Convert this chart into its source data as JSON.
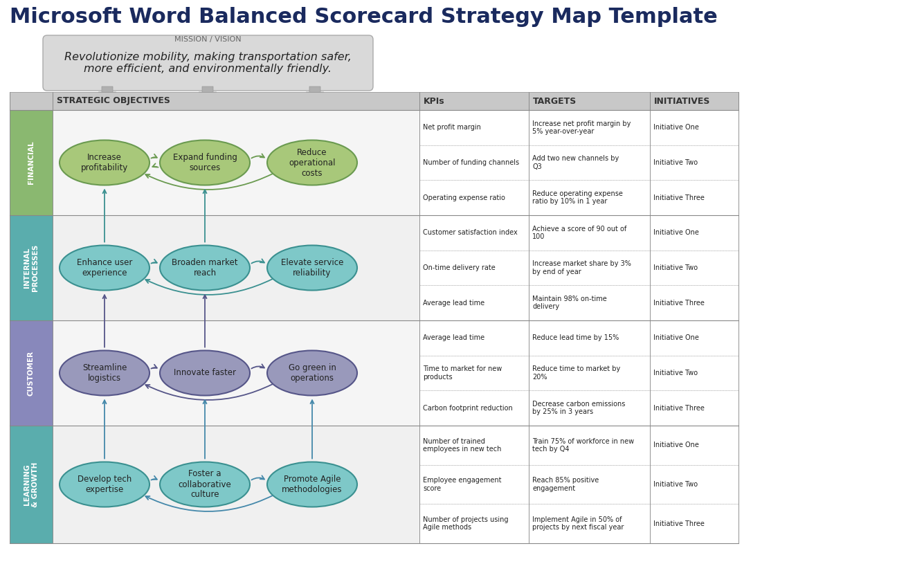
{
  "title": "Microsoft Word Balanced Scorecard Strategy Map Template",
  "mission_label": "MISSION / VISION",
  "mission_text": "Revolutionize mobility, making transportation safer,\nmore efficient, and environmentally friendly.",
  "title_color": "#1a2a5e",
  "bg_color": "#ffffff",
  "mission_box_bg": "#d9d9d9",
  "perspectives": [
    {
      "name": "FINANCIAL",
      "bg": "#8ab870"
    },
    {
      "name": "INTERNAL\nPROCESSES",
      "bg": "#5aadad"
    },
    {
      "name": "CUSTOMER",
      "bg": "#8888bb"
    },
    {
      "name": "LEARNING\n& GROWTH",
      "bg": "#5aadad"
    }
  ],
  "objectives": [
    [
      "Increase\nprofitability",
      "Expand funding\nsources",
      "Reduce\noperational\ncosts"
    ],
    [
      "Enhance user\nexperience",
      "Broaden market\nreach",
      "Elevate service\nreliability"
    ],
    [
      "Streamline\nlogistics",
      "Innovate faster",
      "Go green in\noperations"
    ],
    [
      "Develop tech\nexpertise",
      "Foster a\ncollaborative\nculture",
      "Promote Agile\nmethodologies"
    ]
  ],
  "ellipse_fill": [
    "#a8c87a",
    "#7ec8c8",
    "#9999bb",
    "#7ec8c8"
  ],
  "ellipse_edge": [
    "#6a9a50",
    "#3a9090",
    "#555588",
    "#3a9090"
  ],
  "arrow_colors": [
    "#6a9a50",
    "#3a9090",
    "#555588",
    "#4488aa"
  ],
  "kpis": [
    [
      "Net profit margin",
      "Number of funding channels",
      "Operating expense ratio"
    ],
    [
      "Customer satisfaction index",
      "On-time delivery rate",
      "Average lead time"
    ],
    [
      "Average lead time",
      "Time to market for new\nproducts",
      "Carbon footprint reduction"
    ],
    [
      "Number of trained\nemployees in new tech",
      "Employee engagement\nscore",
      "Number of projects using\nAgile methods"
    ]
  ],
  "targets": [
    [
      "Increase net profit margin by\n5% year-over-year",
      "Add two new channels by\nQ3",
      "Reduce operating expense\nratio by 10% in 1 year"
    ],
    [
      "Achieve a score of 90 out of\n100",
      "Increase market share by 3%\nby end of year",
      "Maintain 98% on-time\ndelivery"
    ],
    [
      "Reduce lead time by 15%",
      "Reduce time to market by\n20%",
      "Decrease carbon emissions\nby 25% in 3 years"
    ],
    [
      "Train 75% of workforce in new\ntech by Q4",
      "Reach 85% positive\nengagement",
      "Implement Agile in 50% of\nprojects by next fiscal year"
    ]
  ],
  "initiatives": [
    [
      "Initiative One",
      "Initiative Two",
      "Initiative Three"
    ],
    [
      "Initiative One",
      "Initiative Two",
      "Initiative Three"
    ],
    [
      "Initiative One",
      "Initiative Two",
      "Initiative Three"
    ],
    [
      "Initiative One",
      "Initiative Two",
      "Initiative Three"
    ]
  ],
  "col_headers": [
    "STRATEGIC OBJECTIVES",
    "KPIs",
    "TARGETS",
    "INITIATIVES"
  ]
}
